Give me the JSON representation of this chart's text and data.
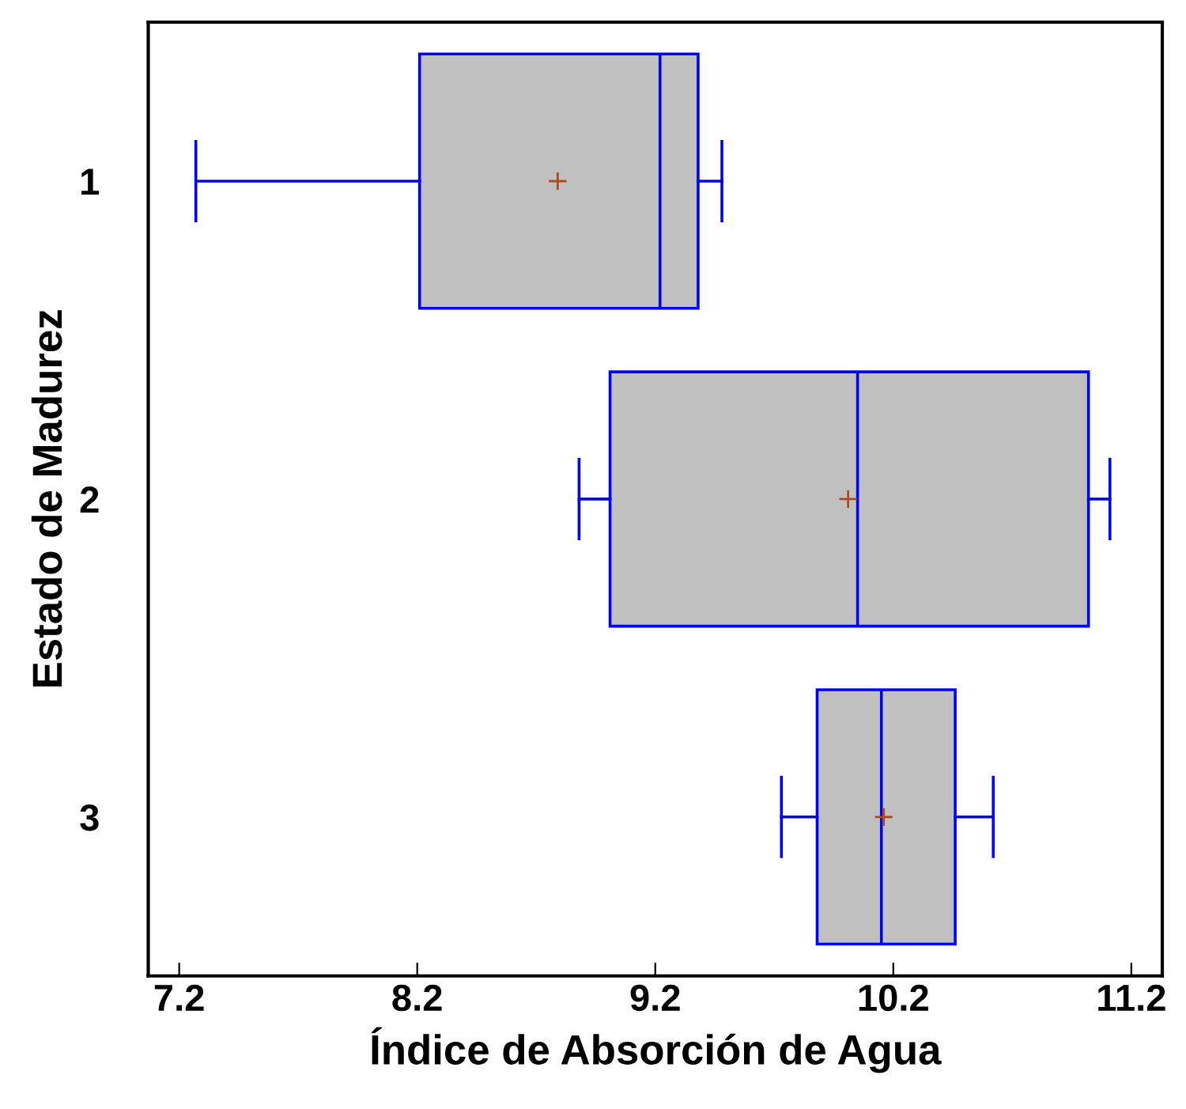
{
  "chart_data": {
    "type": "box",
    "orientation": "horizontal",
    "xlabel": "Índice de Absorción de Agua",
    "ylabel": "Estado de Madurez",
    "categories": [
      "1",
      "2",
      "3"
    ],
    "color": "#c0c0c0",
    "boxes": [
      {
        "low": 7.27,
        "q1": 8.21,
        "median": 9.22,
        "q3": 9.38,
        "high": 9.48,
        "mean": 8.79
      },
      {
        "low": 8.88,
        "q1": 9.01,
        "median": 10.05,
        "q3": 11.02,
        "high": 11.11,
        "mean": 10.01
      },
      {
        "low": 9.73,
        "q1": 9.88,
        "median": 10.15,
        "q3": 10.46,
        "high": 10.62,
        "mean": 10.16
      }
    ],
    "xlim": [
      7.07,
      11.33
    ],
    "xticks": [
      7.2,
      8.2,
      9.2,
      10.2,
      11.2
    ],
    "grid": false
  }
}
